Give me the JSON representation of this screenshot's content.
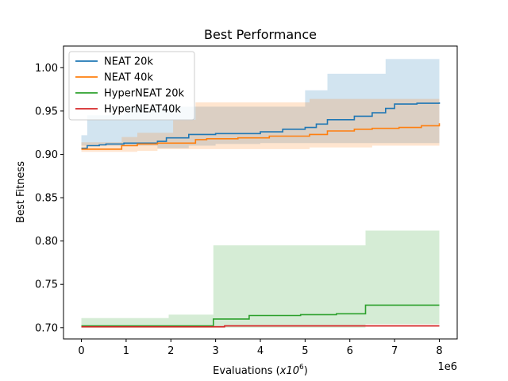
{
  "chart_data": {
    "type": "line",
    "step": true,
    "title": "Best Performance",
    "xlabel": "Evaluations",
    "xlabel_unit": "x10",
    "xlabel_exp": "6",
    "ylabel": "Best Fitness",
    "x_offset_text": "1e6",
    "xlim": [
      -0.4,
      8.4
    ],
    "ylim": [
      0.687,
      1.025
    ],
    "xticks": [
      0,
      1,
      2,
      3,
      4,
      5,
      6,
      7,
      8
    ],
    "xtick_labels": [
      "0",
      "1",
      "2",
      "3",
      "4",
      "5",
      "6",
      "7",
      "8"
    ],
    "yticks": [
      0.7,
      0.75,
      0.8,
      0.85,
      0.9,
      0.95,
      1.0
    ],
    "ytick_labels": [
      "0.70",
      "0.75",
      "0.80",
      "0.85",
      "0.90",
      "0.95",
      "1.00"
    ],
    "grid": false,
    "legend_position": "top-left",
    "series": [
      {
        "name": "NEAT 20k",
        "color": "#1f77b4",
        "x": [
          0,
          0.13,
          0.4,
          0.55,
          0.95,
          1.7,
          1.9,
          2.4,
          3.0,
          4.0,
          4.5,
          5.0,
          5.25,
          5.5,
          6.1,
          6.5,
          6.8,
          7.0,
          7.5,
          8.0
        ],
        "y": [
          0.907,
          0.91,
          0.911,
          0.912,
          0.913,
          0.915,
          0.919,
          0.923,
          0.924,
          0.926,
          0.929,
          0.931,
          0.935,
          0.94,
          0.944,
          0.948,
          0.953,
          0.958,
          0.959,
          0.96
        ],
        "upper": [
          0.922,
          0.945,
          0.945,
          0.945,
          0.955,
          0.955,
          0.955,
          0.955,
          0.955,
          0.955,
          0.955,
          0.974,
          0.974,
          0.993,
          0.993,
          0.993,
          1.01,
          1.01,
          1.01,
          1.01
        ],
        "lower": [
          0.91,
          0.91,
          0.91,
          0.91,
          0.91,
          0.907,
          0.907,
          0.91,
          0.912,
          0.913,
          0.913,
          0.913,
          0.913,
          0.913,
          0.913,
          0.913,
          0.913,
          0.913,
          0.913,
          0.913
        ]
      },
      {
        "name": "NEAT 40k",
        "color": "#ff7f0e",
        "x": [
          0,
          0.35,
          0.9,
          1.25,
          1.7,
          2.05,
          2.55,
          2.8,
          3.5,
          4.2,
          5.1,
          5.5,
          6.1,
          6.5,
          7.1,
          7.6,
          8.0
        ],
        "y": [
          0.906,
          0.906,
          0.91,
          0.912,
          0.913,
          0.913,
          0.917,
          0.918,
          0.919,
          0.921,
          0.923,
          0.927,
          0.929,
          0.93,
          0.931,
          0.933,
          0.936
        ],
        "upper": [
          0.914,
          0.914,
          0.92,
          0.925,
          0.925,
          0.94,
          0.96,
          0.96,
          0.96,
          0.96,
          0.964,
          0.964,
          0.964,
          0.964,
          0.964,
          0.964,
          0.964
        ],
        "lower": [
          0.903,
          0.903,
          0.903,
          0.904,
          0.906,
          0.906,
          0.906,
          0.906,
          0.906,
          0.906,
          0.908,
          0.908,
          0.908,
          0.91,
          0.91,
          0.91,
          0.91
        ]
      },
      {
        "name": "HyperNEAT 20k",
        "color": "#2ca02c",
        "x": [
          0,
          1.95,
          2.95,
          3.75,
          4.9,
          5.7,
          6.35,
          8.0
        ],
        "y": [
          0.702,
          0.702,
          0.71,
          0.714,
          0.715,
          0.716,
          0.726,
          0.726
        ],
        "upper": [
          0.711,
          0.715,
          0.795,
          0.795,
          0.795,
          0.795,
          0.812,
          0.812
        ],
        "lower": [
          0.7,
          0.7,
          0.7,
          0.7,
          0.7,
          0.7,
          0.704,
          0.704
        ]
      },
      {
        "name": "HyperNEAT40k",
        "color": "#d62728",
        "x": [
          0,
          1.9,
          3.2,
          5.7,
          8.0
        ],
        "y": [
          0.701,
          0.701,
          0.702,
          0.702,
          0.702
        ],
        "upper": [
          0.702,
          0.702,
          0.703,
          0.703,
          0.703
        ],
        "lower": [
          0.7,
          0.7,
          0.701,
          0.701,
          0.701
        ]
      }
    ],
    "band_opacity": 0.2
  }
}
